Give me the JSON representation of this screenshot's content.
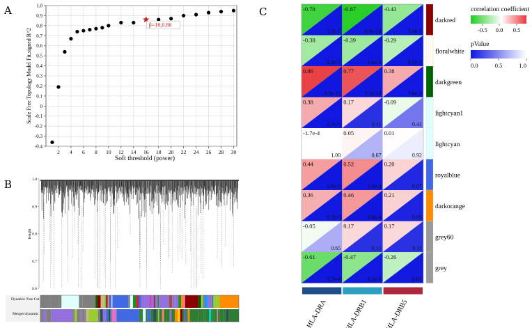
{
  "panels": {
    "a_label": "A",
    "b_label": "B",
    "c_label": "C"
  },
  "chart_data": [
    {
      "type": "scatter",
      "panel": "A",
      "title": "",
      "xlabel": "Soft threshold (power)",
      "ylabel": "Scale Free Topology Model Fit,signed R^2",
      "xlim": [
        0,
        30.5
      ],
      "ylim": [
        -0.4,
        1.0
      ],
      "x_ticks": [
        2,
        4,
        6,
        8,
        10,
        12,
        14,
        16,
        18,
        20,
        22,
        24,
        26,
        28,
        30
      ],
      "y_ticks": [
        -0.4,
        -0.3,
        -0.2,
        -0.1,
        0,
        0.1,
        0.2,
        0.3,
        0.4,
        0.5,
        0.6,
        0.7,
        0.8,
        0.9,
        1.0
      ],
      "x_tick_labels": [
        "2",
        "4",
        "6",
        "8",
        "10",
        "12",
        "14",
        "16",
        "18",
        "20",
        "22",
        "24",
        "26",
        "28",
        "30"
      ],
      "y_tick_labels": [
        "-0.4",
        "-0.3",
        "-0.2",
        "-0.1",
        "0",
        "0.1",
        "0.2",
        "0.3",
        "0.4",
        "0.5",
        "0.6",
        "0.7",
        "0.8",
        "0.9",
        "1.0"
      ],
      "x": [
        1,
        2,
        3,
        4,
        5,
        6,
        7,
        8,
        9,
        10,
        12,
        14,
        18,
        20,
        22,
        24,
        26,
        28,
        30
      ],
      "y": [
        -0.36,
        0.19,
        0.54,
        0.67,
        0.74,
        0.75,
        0.76,
        0.77,
        0.78,
        0.8,
        0.83,
        0.83,
        0.86,
        0.87,
        0.9,
        0.91,
        0.93,
        0.94,
        0.95
      ],
      "highlight": {
        "x": 16,
        "y": 0.86,
        "label": "β=16,0.86",
        "color": "#cc2222"
      },
      "grid": true
    },
    {
      "type": "dendrogram",
      "panel": "B",
      "ylabel": "Height",
      "y_ticks": [
        0.6,
        0.7,
        0.8,
        0.9,
        1.0
      ],
      "y_tick_labels": [
        "0.6",
        "0.7",
        "0.8",
        "0.9",
        "1.0"
      ],
      "ylim": [
        0.6,
        1.0
      ],
      "color_rows": [
        "Dynamic Tree Cut",
        "Merged dynamic"
      ],
      "palette": [
        "#7f7f7f",
        "#8b0000",
        "#006400",
        "#4169e1",
        "#ff8c00",
        "#e0ffff",
        "#228b22",
        "#ff1493",
        "#ffd700",
        "#9370db",
        "#00ced1",
        "#a0522d",
        "#d2b48c",
        "#2f4f4f",
        "#ff69b4",
        "#1e90ff",
        "#dc143c",
        "#9acd32"
      ]
    },
    {
      "type": "heatmap",
      "panel": "C",
      "rows": [
        "darkred",
        "floralwhite",
        "darkgreen",
        "lightcyan1",
        "lightcyan",
        "royalblue",
        "darkorange",
        "grey60",
        "grey"
      ],
      "row_colors": [
        "#8b0000",
        "#fffaf0",
        "#006400",
        "#e0ffff",
        "#e0ffff",
        "#4169e1",
        "#ff8c00",
        "#999999",
        "#9c9c9c"
      ],
      "columns": [
        "HLA-DRA",
        "HLA-DRB1",
        "HLA-DRB5"
      ],
      "column_colors": [
        "#1f4e8c",
        "#2a9fc0",
        "#b0283c"
      ],
      "values": [
        [
          -0.78,
          -0.87,
          -0.43
        ],
        [
          -0.38,
          -0.39,
          -0.29
        ],
        [
          0.86,
          0.77,
          0.38
        ],
        [
          0.38,
          0.17,
          -0.09
        ],
        [
          -0.00017,
          0.05,
          0.01
        ],
        [
          0.44,
          0.52,
          0.2
        ],
        [
          0.36,
          0.46,
          0.21
        ],
        [
          -0.05,
          0.17,
          0.17
        ],
        [
          -0.61,
          -0.47,
          -0.26
        ]
      ],
      "value_labels": [
        [
          "-0.78",
          "-0.87",
          "-0.43"
        ],
        [
          "-0.38",
          "-0.39",
          "-0.29"
        ],
        [
          "0.86",
          "0.77",
          "0.38"
        ],
        [
          "0.38",
          "0.17",
          "-0.09"
        ],
        [
          "-1.7e-4",
          "0.05",
          "0.01"
        ],
        [
          "0.44",
          "0.52",
          "0.20"
        ],
        [
          "0.36",
          "0.46",
          "0.21"
        ],
        [
          "-0.05",
          "0.17",
          "0.17"
        ],
        [
          "-0.61",
          "-0.47",
          "-0.26"
        ]
      ],
      "pvalues": [
        [
          5.5e-07,
          9.9e-10,
          0.0034
        ],
        [
          0.0032,
          0.0016,
          0.0061
        ],
        [
          4.3e-11,
          3.5e-10,
          0.0036
        ],
        [
          0.0027,
          0.11,
          0.41
        ],
        [
          1.0,
          0.67,
          0.92
        ],
        [
          0.0016,
          0.00059,
          0.07
        ],
        [
          0.0067,
          0.00068,
          0.05
        ],
        [
          0.65,
          0.11,
          0.11
        ],
        [
          3.7e-08,
          0.0045,
          0.01
        ]
      ],
      "pvalue_labels": [
        [
          "5.5e-7",
          "9.9e-10",
          "3.4e-3"
        ],
        [
          "3.2e-3",
          "1.6e-3",
          "6.1e-3"
        ],
        [
          "4.3e-11",
          "3.5e-10",
          "3.6e-3"
        ],
        [
          "2.7e-3",
          "0.11",
          "0.41"
        ],
        [
          "1.00",
          "0.67",
          "0.92"
        ],
        [
          "1.6e-3",
          "5.9e-4",
          "0.07"
        ],
        [
          "6.7e-3",
          "6.8e-4",
          "0.05"
        ],
        [
          "0.65",
          "0.11",
          "0.11"
        ],
        [
          "3.7e-8",
          "4.5e-3",
          "0.01"
        ]
      ],
      "legend": {
        "corr_title": "correlation coefficient",
        "corr_ticks": [
          "-0.5",
          "0.0",
          "0.5"
        ],
        "corr_colors": [
          "#22cc22",
          "#ffffff",
          "#e8383c"
        ],
        "p_title": "pValue",
        "p_ticks": [
          "0.0",
          "0.5",
          "1.0"
        ],
        "p_colors": [
          "#1018e0",
          "#ffffff"
        ]
      }
    }
  ]
}
